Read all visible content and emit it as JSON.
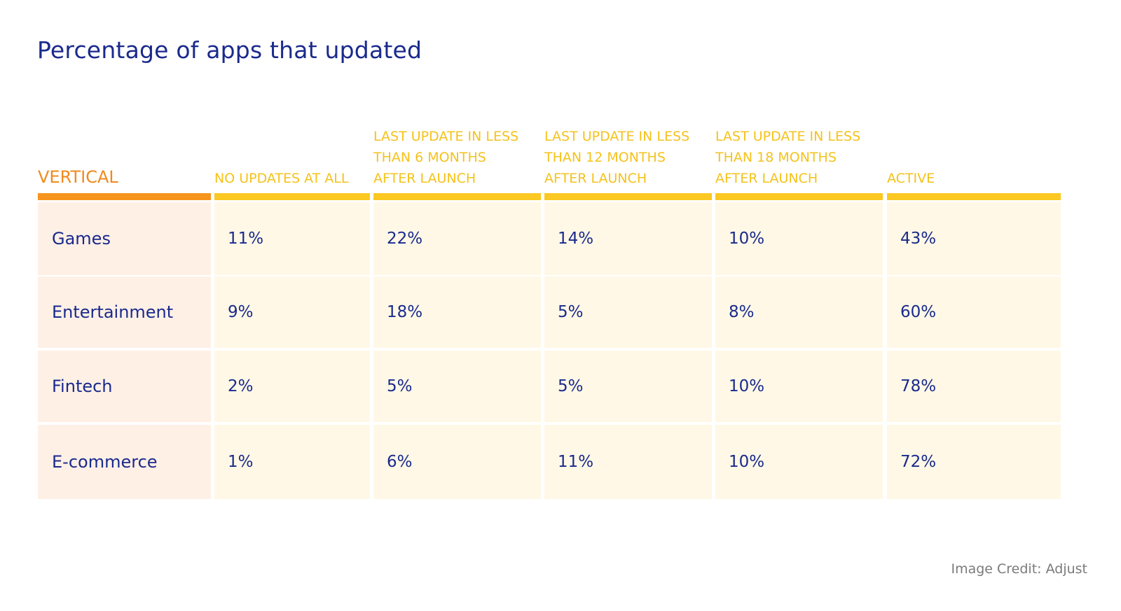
{
  "title": "Percentage of apps that updated",
  "credit": "Image Credit: Adjust",
  "colors": {
    "title": "#1a2a8c",
    "header": "#f5c21b",
    "vertical_header": "#f08a1d",
    "bar": "#fcc822",
    "vertical_bar": "#f7941d",
    "cell_bg": "#fff8e6",
    "vertical_cell_bg": "#fff0e6"
  },
  "chart_data": {
    "type": "table",
    "title": "Percentage of apps that updated",
    "columns": [
      "VERTICAL",
      "NO UPDATES AT ALL",
      "LAST UPDATE IN LESS THAN 6 MONTHS AFTER LAUNCH",
      "LAST UPDATE IN LESS THAN 12 MONTHS AFTER LAUNCH",
      "LAST UPDATE IN LESS THAN 18 MONTHS AFTER LAUNCH",
      "ACTIVE"
    ],
    "rows": [
      [
        "Games",
        "11%",
        "22%",
        "14%",
        "10%",
        "43%"
      ],
      [
        "Entertainment",
        "9%",
        "18%",
        "5%",
        "8%",
        "60%"
      ],
      [
        "Fintech",
        "2%",
        "5%",
        "5%",
        "10%",
        "78%"
      ],
      [
        "E-commerce",
        "1%",
        "6%",
        "11%",
        "10%",
        "72%"
      ]
    ]
  }
}
